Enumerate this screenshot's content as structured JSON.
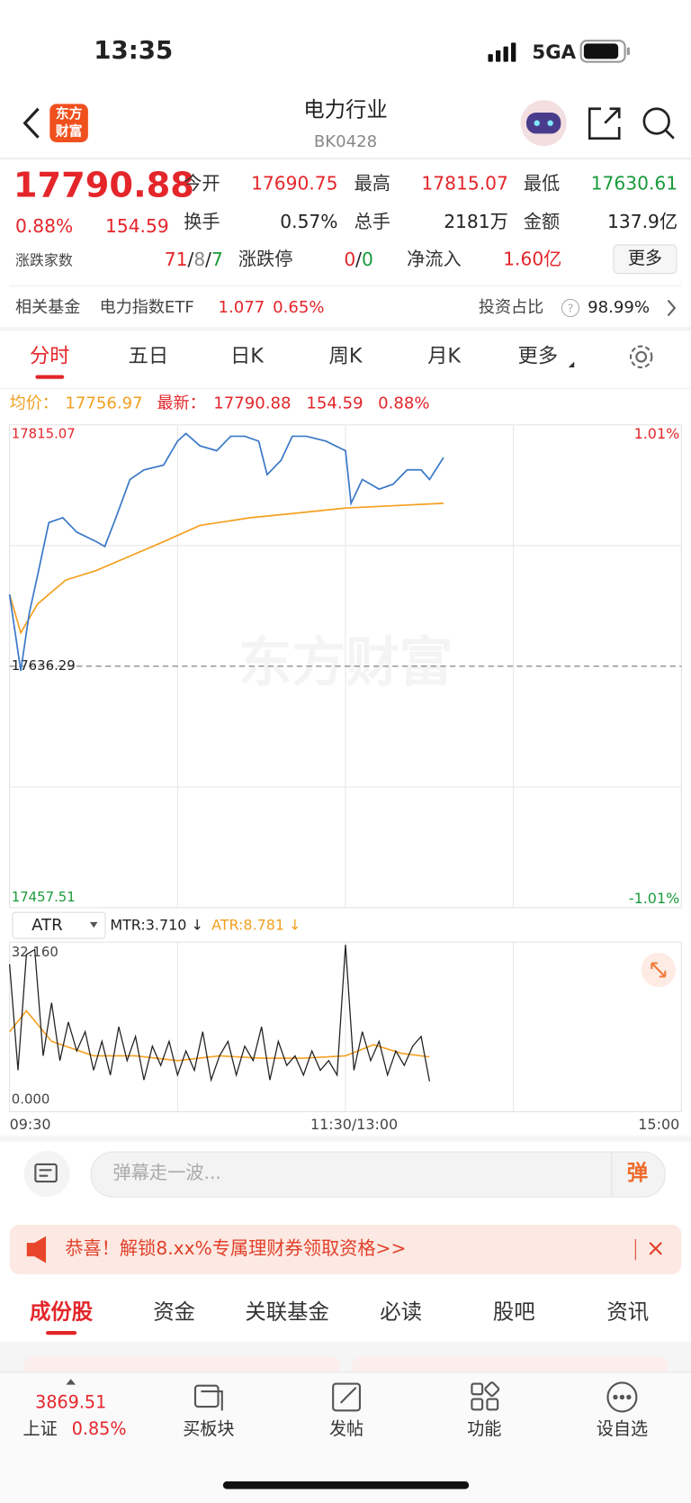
{
  "status_bar": {
    "time": "13:35",
    "network": "5GA"
  },
  "header": {
    "logo": [
      "东方",
      "财富"
    ],
    "title": "电力行业",
    "code": "BK0428"
  },
  "quote": {
    "price": "17790.88",
    "change_pct": "0.88%",
    "change": "154.59",
    "stats": [
      {
        "label": "今开",
        "value": "17690.75"
      },
      {
        "label": "最高",
        "value": "17815.07"
      },
      {
        "label": "最低",
        "value": "17630.61"
      },
      {
        "label": "换手",
        "value": "0.57%"
      },
      {
        "label": "总手",
        "value": "2181万"
      },
      {
        "label": "金额",
        "value": "137.9亿"
      }
    ],
    "breadth_label": "涨跌家数",
    "breadth": {
      "up": "71",
      "flat": "8",
      "down": "7",
      "separator": "/"
    },
    "limit_label": "涨跌停",
    "limit": {
      "up": "0",
      "down": "0"
    },
    "inflow_label": "净流入",
    "inflow": "1.60亿",
    "more": "更多"
  },
  "fund_row": {
    "label": "相关基金",
    "fund": "电力指数ETF",
    "price": "1.077",
    "change": "0.65%",
    "ratio_label": "投资占比",
    "help": "?",
    "ratio": "98.99%"
  },
  "chart_tabs": [
    "分时",
    "五日",
    "日K",
    "周K",
    "月K",
    "更多"
  ],
  "summary": {
    "avg_label": "均价：",
    "avg": "17756.97",
    "last_label": "最新：",
    "last": "17790.88",
    "change": "154.59",
    "change_pct": "0.88%"
  },
  "intraday": {
    "watermark": "东方财富",
    "xlim": [
      0,
      240
    ],
    "ylim": [
      17457.51,
      17815.07
    ],
    "yticks": [
      17815.07,
      17636.29,
      17457.51
    ],
    "pct_labels": [
      "1.01%",
      "-1.01%"
    ],
    "grid_x": [
      60,
      120,
      180
    ],
    "grid_y": [
      17725.68,
      17546.9
    ],
    "price_x": [
      0,
      4,
      7,
      10,
      14,
      19,
      24,
      31,
      34,
      38,
      43,
      48,
      55,
      60,
      63,
      68,
      74,
      79,
      84,
      89,
      92,
      97,
      101,
      106,
      113,
      120,
      122,
      126,
      132,
      137,
      142,
      147,
      150,
      155
    ],
    "price": [
      17689.5,
      17632.8,
      17675.3,
      17703.7,
      17742.7,
      17746.3,
      17735.6,
      17728.5,
      17725.0,
      17746.3,
      17774.6,
      17781.7,
      17785.3,
      17803.0,
      17808.7,
      17799.5,
      17795.9,
      17806.6,
      17806.6,
      17803.0,
      17778.2,
      17788.8,
      17806.6,
      17806.6,
      17803.0,
      17795.9,
      17756.9,
      17774.6,
      17767.5,
      17771.1,
      17781.7,
      17781.7,
      17774.6,
      17790.88
    ],
    "avg_x": [
      0,
      4,
      10,
      20,
      31,
      43,
      55,
      68,
      86,
      103,
      120,
      133,
      155
    ],
    "avg": [
      17689.5,
      17661.1,
      17682.4,
      17700.1,
      17707.2,
      17717.9,
      17728.5,
      17740.6,
      17746.3,
      17749.8,
      17753.4,
      17754.8,
      17756.97
    ]
  },
  "atr_chart": {
    "indicator": "ATR",
    "mtr_label": "MTR:3.710 ↓",
    "atr_label": "ATR:8.781 ↓",
    "xlim": [
      0,
      240
    ],
    "ylim": [
      0,
      32.16
    ],
    "yticks": [
      {
        "value": 32.16,
        "label": "32.160"
      },
      {
        "value": 0,
        "label": "0.000"
      }
    ],
    "xticks": [
      {
        "value": 0,
        "label": "09:30"
      },
      {
        "value": 120,
        "label": "11:30/13:00"
      },
      {
        "value": 240,
        "label": "15:00"
      }
    ],
    "mtr_x": [
      0,
      3,
      6,
      9,
      12,
      15,
      18,
      21,
      24,
      27,
      30,
      33,
      36,
      39,
      42,
      45,
      48,
      51,
      54,
      57,
      60,
      63,
      66,
      69,
      72,
      75,
      78,
      81,
      84,
      87,
      90,
      93,
      96,
      99,
      102,
      105,
      108,
      111,
      114,
      117,
      120,
      123,
      126,
      129,
      132,
      135,
      138,
      141,
      144,
      147,
      150
    ],
    "mtr": [
      28,
      6,
      30,
      31,
      9,
      20,
      8,
      16,
      10,
      14,
      6,
      12,
      5,
      15,
      8,
      13,
      4,
      11,
      7,
      12,
      5,
      10,
      6,
      14,
      4,
      9,
      12,
      5,
      11,
      8,
      15,
      4,
      12,
      7,
      9,
      5,
      10,
      6,
      8,
      5,
      32,
      6,
      14,
      8,
      12,
      5,
      10,
      7,
      11,
      13,
      3.71
    ],
    "atr_x": [
      0,
      6,
      15,
      30,
      45,
      60,
      75,
      90,
      105,
      120,
      130,
      140,
      150
    ],
    "atr": [
      14,
      18.3,
      12,
      9,
      9,
      8,
      9,
      8.5,
      8.5,
      9,
      11.3,
      9.5,
      8.781
    ]
  },
  "comment_bar": {
    "placeholder": "弹幕走一波...",
    "danmaku": "弹"
  },
  "banner": {
    "text": "恭喜！解锁8.xx%专属理财券领取资格>>",
    "close": "×"
  },
  "section_tabs": [
    "成份股",
    "资金",
    "关联基金",
    "必读",
    "股吧",
    "资讯"
  ],
  "bottom_nav": {
    "index_value": "3869.51",
    "index_name": "上证",
    "index_change": "0.85%",
    "items": [
      "买板块",
      "发帖",
      "功能",
      "设自选"
    ]
  }
}
